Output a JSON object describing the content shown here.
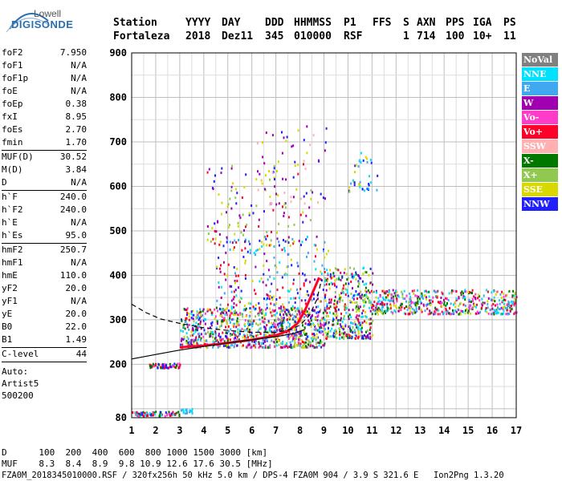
{
  "logo": {
    "top_text": "Lowell",
    "brand_text": "DIGISONDE"
  },
  "header": {
    "columns": [
      {
        "label": "Station",
        "value": "Fortaleza"
      },
      {
        "label": "YYYY",
        "value": "2018"
      },
      {
        "label": "DAY",
        "value": "Dez11"
      },
      {
        "label": "DDD",
        "value": "345"
      },
      {
        "label": "HHMMSS",
        "value": "010000"
      },
      {
        "label": "P1",
        "value": "RSF"
      },
      {
        "label": "FFS",
        "value": ""
      },
      {
        "label": "S",
        "value": "1"
      },
      {
        "label": "AXN",
        "value": "714"
      },
      {
        "label": "PPS",
        "value": "100"
      },
      {
        "label": "IGA",
        "value": "10+"
      },
      {
        "label": "PS",
        "value": "11"
      }
    ]
  },
  "params": {
    "group1": [
      {
        "label": "foF2",
        "value": "7.950"
      },
      {
        "label": "foF1",
        "value": "N/A"
      },
      {
        "label": "foF1p",
        "value": "N/A"
      },
      {
        "label": "foE",
        "value": "N/A"
      },
      {
        "label": "foEp",
        "value": "0.38"
      },
      {
        "label": "fxI",
        "value": "8.95"
      },
      {
        "label": "foEs",
        "value": "2.70"
      },
      {
        "label": "fmin",
        "value": "1.70"
      }
    ],
    "group2": [
      {
        "label": "MUF(D)",
        "value": "30.52"
      },
      {
        "label": "M(D)",
        "value": "3.84"
      },
      {
        "label": "D",
        "value": "N/A"
      }
    ],
    "group3": [
      {
        "label": "h`F",
        "value": "240.0"
      },
      {
        "label": "h`F2",
        "value": "240.0"
      },
      {
        "label": "h`E",
        "value": "N/A"
      },
      {
        "label": "h`Es",
        "value": "95.0"
      }
    ],
    "group4": [
      {
        "label": "hmF2",
        "value": "250.7"
      },
      {
        "label": "hmF1",
        "value": "N/A"
      },
      {
        "label": "hmE",
        "value": "110.0"
      },
      {
        "label": "yF2",
        "value": "20.0"
      },
      {
        "label": "yF1",
        "value": "N/A"
      },
      {
        "label": "yE",
        "value": "20.0"
      },
      {
        "label": "B0",
        "value": "22.0"
      },
      {
        "label": "B1",
        "value": "1.49"
      }
    ],
    "clevel": {
      "label": "C-level",
      "value": "44"
    },
    "auto": [
      "Auto:",
      "Artist5",
      "500200"
    ]
  },
  "legend": [
    {
      "label": "NoVal",
      "color": "#808080"
    },
    {
      "label": "NNE",
      "color": "#00e0ff"
    },
    {
      "label": "E",
      "color": "#40a8f0"
    },
    {
      "label": "W",
      "color": "#a000b0"
    },
    {
      "label": "Vo-",
      "color": "#ff3cc8"
    },
    {
      "label": "Vo+",
      "color": "#ff0028"
    },
    {
      "label": "SSW",
      "color": "#ffb0b0"
    },
    {
      "label": "X-",
      "color": "#007800"
    },
    {
      "label": "X+",
      "color": "#90c850"
    },
    {
      "label": "SSE",
      "color": "#d8d800"
    },
    {
      "label": "NNW",
      "color": "#2020ff"
    }
  ],
  "footer": {
    "d_line": "D      100  200  400  600  800 1000 1500 3000 [km]",
    "muf_line": "MUF    8.3  8.4  8.9  9.8 10.9 12.6 17.6 30.5 [MHz]",
    "info_line": "FZA0M_2018345010000.RSF / 320fx256h 50 kHz 5.0 km / DPS-4 FZA0M 904 / 3.9 S 321.6 E   Ion2Png 1.3.20"
  },
  "chart_data": {
    "type": "scatter",
    "title": "",
    "xlabel": "",
    "ylabel": "",
    "xlim": [
      1,
      17
    ],
    "ylim": [
      80,
      900
    ],
    "x_ticks": [
      "1",
      "2",
      "3",
      "4",
      "5",
      "6",
      "7",
      "8",
      "9",
      "10",
      "11",
      "12",
      "13",
      "14",
      "15",
      "16",
      "17"
    ],
    "y_ticks": [
      "80",
      "200",
      "300",
      "400",
      "500",
      "600",
      "700",
      "800",
      "900"
    ],
    "grid": true,
    "dashed_curve": [
      [
        1.0,
        335
      ],
      [
        1.6,
        316
      ],
      [
        2.2,
        302
      ],
      [
        3.0,
        292
      ],
      [
        4.0,
        282
      ],
      [
        5.0,
        276
      ],
      [
        6.0,
        272
      ],
      [
        7.0,
        272
      ],
      [
        7.6,
        278
      ],
      [
        8.0,
        288
      ],
      [
        8.4,
        310
      ],
      [
        8.7,
        345
      ],
      [
        8.9,
        390
      ]
    ],
    "dashed_curve_lower": [
      [
        1.0,
        212
      ],
      [
        2.0,
        222
      ],
      [
        3.0,
        232
      ],
      [
        4.0,
        240
      ],
      [
        5.0,
        248
      ],
      [
        6.0,
        255
      ],
      [
        7.0,
        262
      ],
      [
        7.8,
        270
      ],
      [
        8.2,
        278
      ]
    ],
    "red_trace": [
      [
        3.0,
        238
      ],
      [
        4.0,
        242
      ],
      [
        5.0,
        248
      ],
      [
        6.0,
        255
      ],
      [
        7.0,
        265
      ],
      [
        7.5,
        275
      ],
      [
        7.9,
        292
      ],
      [
        8.2,
        320
      ],
      [
        8.4,
        345
      ],
      [
        8.6,
        370
      ],
      [
        8.8,
        395
      ]
    ],
    "echo_regions": [
      {
        "x": [
          3.0,
          9.0
        ],
        "y": [
          240,
          330
        ],
        "count": 900,
        "colors": [
          "#d8d800",
          "#ff0028",
          "#00e0ff",
          "#2020ff",
          "#a000b0",
          "#90c850",
          "#ff3cc8",
          "#007800",
          "#40a8f0"
        ]
      },
      {
        "x": [
          4.5,
          9.2
        ],
        "y": [
          320,
          490
        ],
        "count": 260,
        "colors": [
          "#2020ff",
          "#a000b0",
          "#00e0ff",
          "#40a8f0",
          "#d8d800",
          "#ff0028"
        ]
      },
      {
        "x": [
          9.0,
          11.0
        ],
        "y": [
          260,
          420
        ],
        "count": 400,
        "colors": [
          "#d8d800",
          "#00e0ff",
          "#2020ff",
          "#ff0028",
          "#007800",
          "#a000b0",
          "#90c850"
        ]
      },
      {
        "x": [
          11.0,
          17.0
        ],
        "y": [
          315,
          370
        ],
        "count": 520,
        "colors": [
          "#00e0ff",
          "#40a8f0",
          "#ff0028",
          "#a000b0",
          "#d8d800",
          "#007800",
          "#ff3cc8"
        ]
      },
      {
        "x": [
          4.0,
          8.5
        ],
        "y": [
          470,
          660
        ],
        "count": 120,
        "colors": [
          "#d8d800",
          "#a000b0",
          "#ff0028",
          "#2020ff",
          "#90c850"
        ]
      },
      {
        "x": [
          6.2,
          9.2
        ],
        "y": [
          560,
          740
        ],
        "count": 60,
        "colors": [
          "#d8d800",
          "#ffb0b0",
          "#a000b0",
          "#2020ff"
        ]
      },
      {
        "x": [
          10.0,
          11.2
        ],
        "y": [
          590,
          680
        ],
        "count": 40,
        "colors": [
          "#00e0ff",
          "#2020ff",
          "#d8d800",
          "#40a8f0"
        ]
      },
      {
        "x": [
          1.7,
          3.0
        ],
        "y": [
          194,
          204
        ],
        "count": 60,
        "colors": [
          "#ff3cc8",
          "#ff0028",
          "#007800",
          "#2020ff"
        ]
      },
      {
        "x": [
          1.0,
          3.0
        ],
        "y": [
          86,
          96
        ],
        "count": 70,
        "colors": [
          "#ff3cc8",
          "#007800",
          "#ff0028",
          "#2020ff",
          "#00e0ff"
        ]
      },
      {
        "x": [
          3.0,
          3.6
        ],
        "y": [
          92,
          102
        ],
        "count": 20,
        "colors": [
          "#00e0ff",
          "#40a8f0"
        ]
      }
    ]
  }
}
